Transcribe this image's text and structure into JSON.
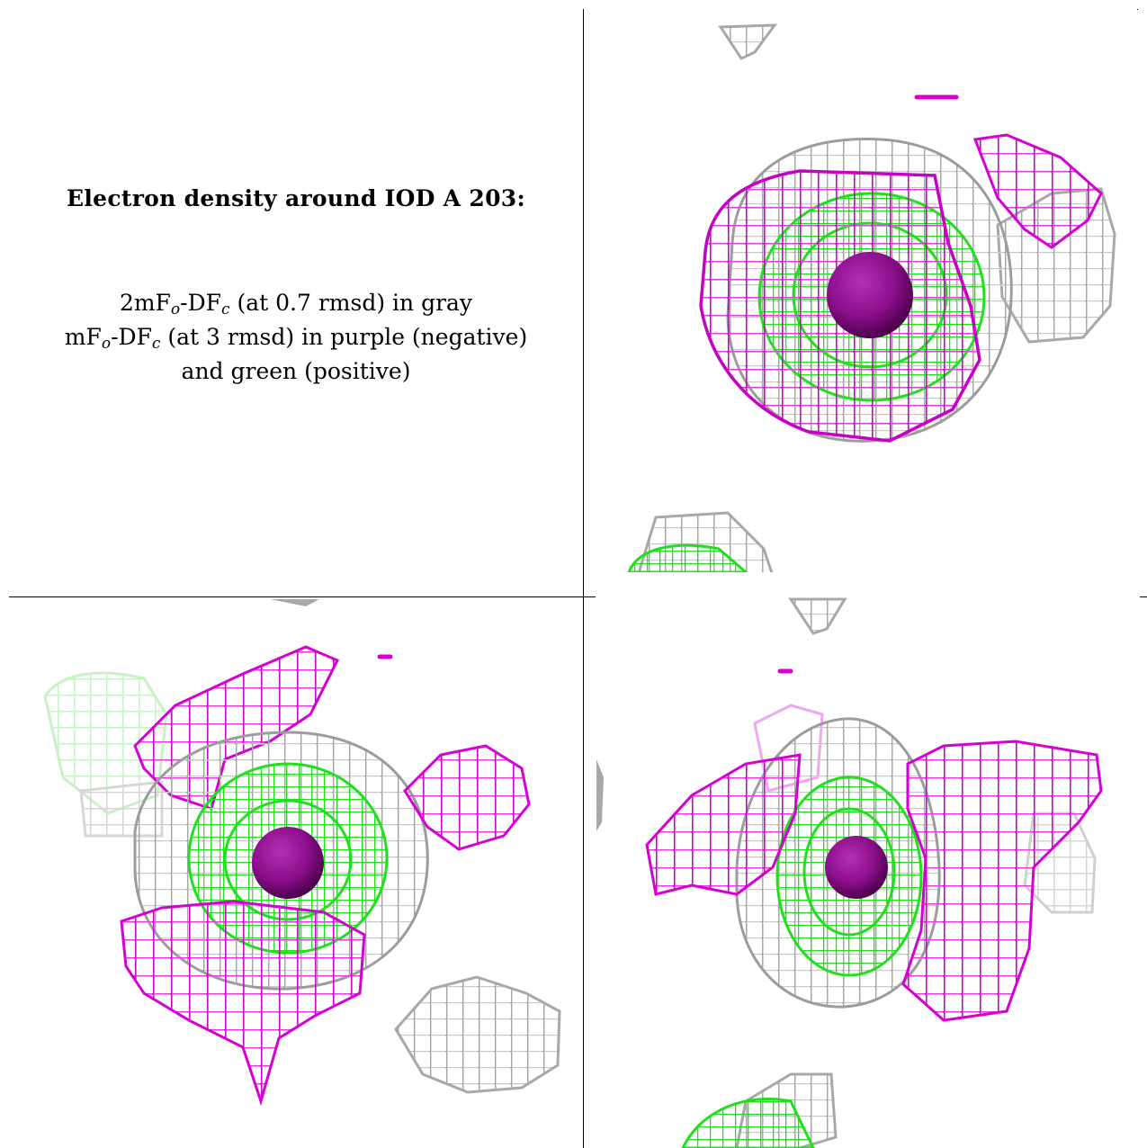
{
  "caption": {
    "title": "Electron density around IOD A 203:",
    "line1": {
      "prefix": "2mF",
      "sub1": "o",
      "mid": "-DF",
      "sub2": "c",
      "suffix": " (at 0.7 rmsd) in gray"
    },
    "line2": {
      "prefix": "mF",
      "sub1": "o",
      "mid": "-DF",
      "sub2": "c",
      "suffix": " (at 3 rmsd) in purple (negative)"
    },
    "line3": "and green (positive)"
  },
  "colors": {
    "gray_mesh": "#a9a9a9",
    "purple_mesh": "#d400d4",
    "green_mesh": "#22e61e",
    "iodine_sphere": "#8b0f8b"
  },
  "panels": [
    {
      "name": "view-1",
      "atom": "IOD A 203"
    },
    {
      "name": "view-2",
      "atom": "IOD A 203"
    },
    {
      "name": "view-3",
      "atom": "IOD A 203"
    }
  ]
}
